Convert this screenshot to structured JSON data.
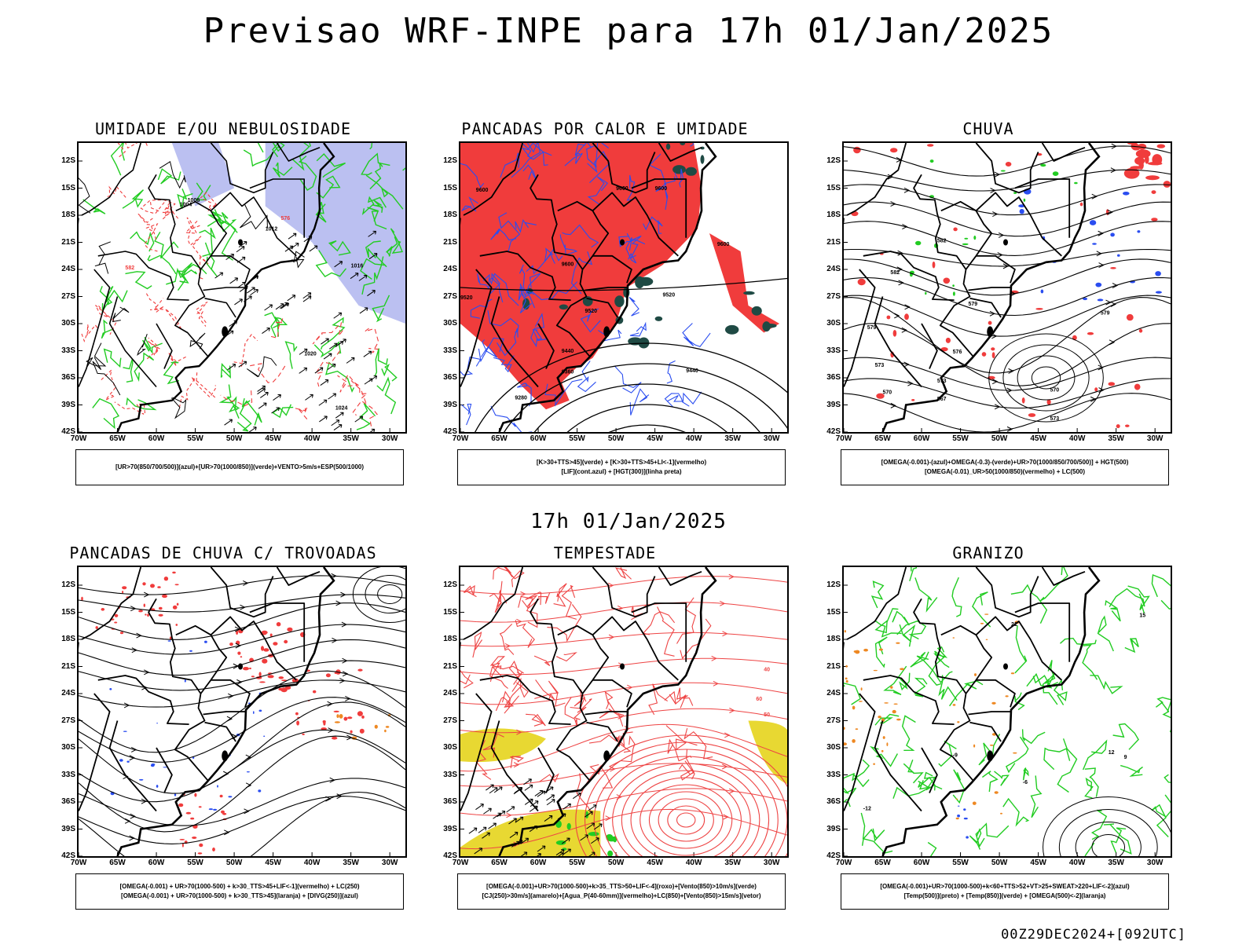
{
  "header": {
    "title": "Previsao WRF-INPE  para 17h 01/Jan/2025"
  },
  "mid_title": "17h 01/Jan/2025",
  "footer": "00Z29DEC2024+[092UTC]",
  "axes": {
    "lat_labels": [
      "12S",
      "15S",
      "18S",
      "21S",
      "24S",
      "27S",
      "30S",
      "33S",
      "36S",
      "39S",
      "42S"
    ],
    "lon_labels": [
      "70W",
      "65W",
      "60W",
      "55W",
      "50W",
      "45W",
      "40W",
      "35W",
      "30W"
    ]
  },
  "colors": {
    "background": "#ffffff",
    "coast_border": "#000000",
    "humidity_green": "#22cc22",
    "humidity_blue_fill": "#aab0ee",
    "precip_red": "#f03c3c",
    "blue_marks": "#2a4df0",
    "dark_teal": "#1f4a44",
    "orange": "#ee8822",
    "yellow": "#e8d832",
    "red_contour": "#ee4444"
  },
  "panels": [
    {
      "title": "UMIDADE E/OU NEBULOSIDADE",
      "legend": [
        "[UR>70(850/700/500)](azul)+[UR>70(1000/850)](verde)+VENTO>5m/s+ESP(500/1000)"
      ],
      "labels": [
        "1004",
        "1008",
        "1012",
        "1016",
        "1020",
        "1024",
        "576",
        "582"
      ]
    },
    {
      "title": "PANCADAS POR CALOR E UMIDADE",
      "legend": [
        "[K>30+TTS>45](verde) + [K>30+TTS>45+LI<-1](vermelho)",
        "[LIF](cont.azul) + [HGT(300)](linha preta)"
      ],
      "labels": [
        "9600",
        "9520",
        "9440",
        "9360",
        "9280"
      ]
    },
    {
      "title": "CHUVA",
      "legend": [
        "[OMEGA(-0.001)-(azul)+OMEGA(-0.3)-(verde)+UR>70(1000/850/700/500)] + HGT(500)",
        "[OMEGA(-0.01)_UR>50(1000/850)(vermelho) + LC(500)"
      ],
      "labels": [
        "582",
        "579",
        "576",
        "573",
        "570",
        "567"
      ]
    },
    {
      "title": "PANCADAS DE CHUVA C/ TROVOADAS",
      "legend": [
        "[OMEGA(-0.001) + UR>70(1000-500) + k>30_TTS>45+LIF<-1](vermelho) + LC(250)",
        "[OMEGA(-0.001) + UR>70(1000-500) + k>30_TTS>45](laranja) + [DIVG(250)](azul)"
      ],
      "labels": []
    },
    {
      "title": "TEMPESTADE",
      "legend": [
        "[OMEGA(-0.001)+UR>70(1000-500)+k>35_TTS>50+LIF<-4](roxo)+[Vento(850)>10m/s](verde)",
        "[CJ(250)>30m/s](amarelo)+[Agua_P(40-60mm)](vermelho)+LC(850)+[Vento(850)>15m/s](vetor)"
      ],
      "labels": [
        "40",
        "60",
        "50"
      ]
    },
    {
      "title": "GRANIZO",
      "legend": [
        "[OMEGA(-0.001)+UR>70(1000-500)+k<60+TTS>52+VT>25+SWEAT>220+LIF<-2](azul)",
        "[Temp(500)](preto) + [Temp(850)](verde) + [OMEGA(500)<-2](laranja)"
      ],
      "labels": [
        "-12",
        "-9",
        "21",
        "15",
        "12",
        "9",
        "-6"
      ]
    }
  ]
}
